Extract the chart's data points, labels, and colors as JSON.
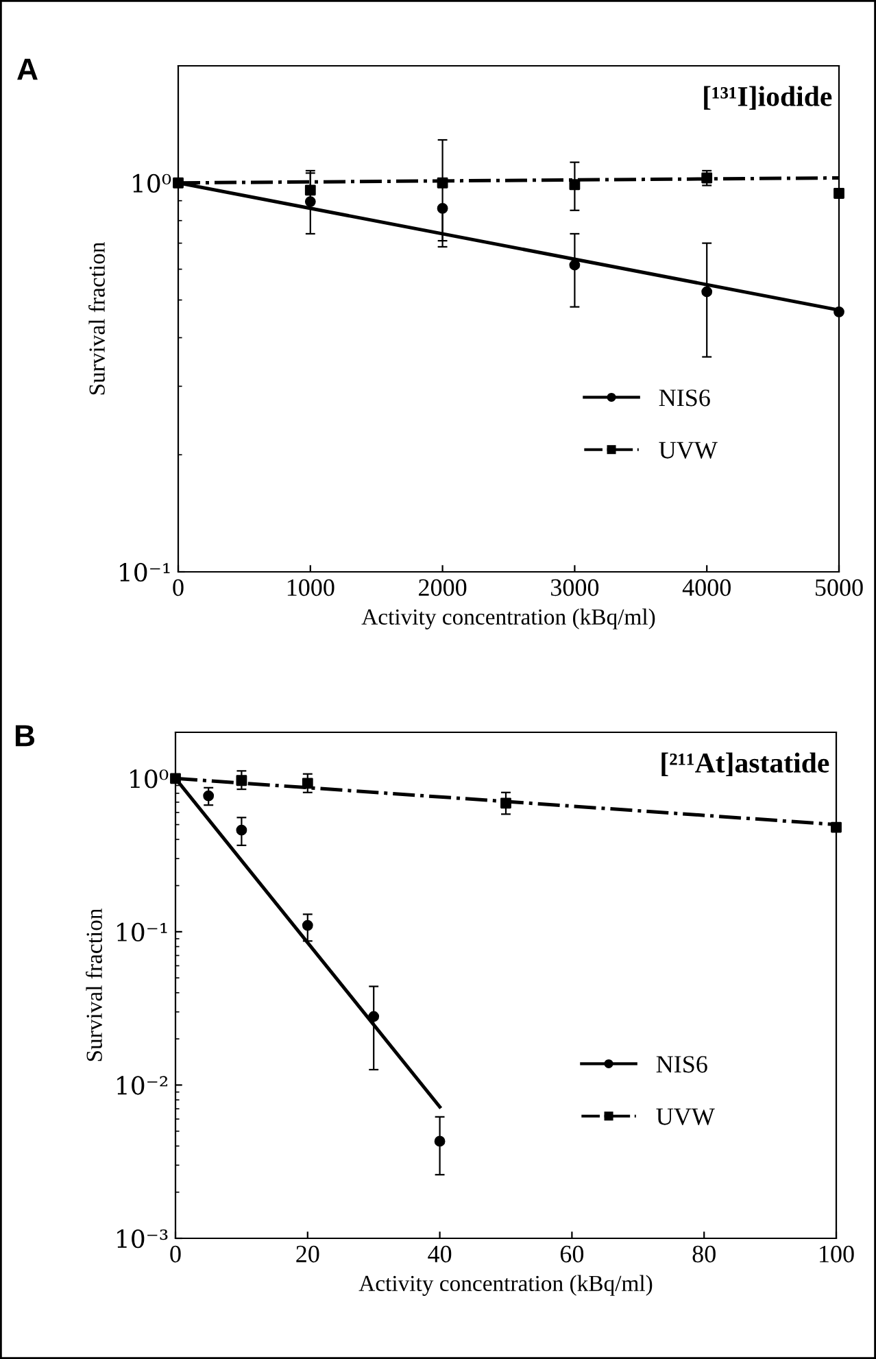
{
  "chart_data": [
    {
      "type": "scatter",
      "annotations": [
        "A",
        "[¹³¹I]iodide"
      ],
      "xlabel": "Activity concentration (kBq/ml)",
      "ylabel": "Survival fraction",
      "log": "y",
      "xlim": [
        0,
        5000
      ],
      "ylim": [
        0.1,
        2
      ],
      "xticks": [
        0,
        1000,
        2000,
        3000,
        4000,
        5000
      ],
      "yticks": [
        {
          "value": 0.1,
          "label": "10⁻¹"
        },
        {
          "value": 1,
          "label": "10⁰"
        }
      ],
      "legend": "bottom right",
      "grid": false,
      "series": [
        {
          "name": "NIS6",
          "color": "#000000",
          "marker": "circle",
          "line_style": "solid",
          "x": [
            1000,
            2000,
            3000,
            4000,
            5000
          ],
          "values": [
            0.895,
            0.86,
            0.615,
            0.525,
            0.466
          ],
          "errors": [
            [
              0.74,
              1.06
            ],
            [
              0.685,
              0.86
            ],
            [
              0.48,
              0.74
            ],
            [
              0.357,
              0.7
            ],
            null
          ]
        },
        {
          "type": "line",
          "color": "#000000",
          "line_style": "solid",
          "x": [
            0,
            5000
          ],
          "values": [
            1.0,
            0.471
          ]
        },
        {
          "name": "UVW",
          "color": "#000000",
          "marker": "square",
          "line_style": "dashdot",
          "x": [
            0,
            1000,
            2000,
            3000,
            4000,
            5000
          ],
          "values": [
            1.0,
            0.958,
            1.0,
            0.99,
            1.03,
            0.94
          ],
          "errors": [
            null,
            [
              0.86,
              1.075
            ],
            [
              0.71,
              1.29
            ],
            [
              0.85,
              1.13
            ],
            [
              0.985,
              1.075
            ],
            null
          ]
        },
        {
          "type": "line",
          "color": "#000000",
          "line_style": "dashdot",
          "x": [
            0,
            5000
          ],
          "values": [
            1.0,
            1.03
          ]
        }
      ]
    },
    {
      "type": "scatter",
      "annotations": [
        "B",
        "[²¹¹At]astatide"
      ],
      "xlabel": "Activity concentration (kBq/ml)",
      "ylabel": "Survival fraction",
      "log": "y",
      "xlim": [
        0,
        100
      ],
      "ylim": [
        0.001,
        2
      ],
      "xticks": [
        0,
        20,
        40,
        60,
        80,
        100
      ],
      "yticks": [
        {
          "value": 0.001,
          "label": "10⁻³"
        },
        {
          "value": 0.01,
          "label": "10⁻²"
        },
        {
          "value": 0.1,
          "label": "10⁻¹"
        },
        {
          "value": 1,
          "label": "10⁰"
        }
      ],
      "legend": "bottom right",
      "grid": false,
      "series": [
        {
          "name": "NIS6",
          "color": "#000000",
          "marker": "circle",
          "line_style": "solid",
          "x": [
            5,
            10,
            20,
            30,
            40
          ],
          "values": [
            0.77,
            0.46,
            0.11,
            0.028,
            0.0043
          ],
          "errors": [
            [
              0.67,
              0.87
            ],
            [
              0.366,
              0.556
            ],
            [
              0.087,
              0.13
            ],
            [
              0.0126,
              0.044
            ],
            [
              0.0026,
              0.0062
            ]
          ]
        },
        {
          "type": "line",
          "color": "#000000",
          "line_style": "solid",
          "x": [
            0,
            40
          ],
          "values": [
            1.0,
            0.0072
          ]
        },
        {
          "name": "UVW",
          "color": "#000000",
          "marker": "square",
          "line_style": "dashdot",
          "x": [
            0,
            10,
            20,
            50,
            100
          ],
          "values": [
            1.0,
            0.97,
            0.93,
            0.69,
            0.48
          ],
          "errors": [
            null,
            [
              0.85,
              1.12
            ],
            [
              0.81,
              1.07
            ],
            [
              0.585,
              0.81
            ],
            null
          ]
        },
        {
          "type": "line",
          "color": "#000000",
          "line_style": "dashdot",
          "x": [
            0,
            100
          ],
          "values": [
            1.0,
            0.5
          ]
        }
      ]
    }
  ]
}
